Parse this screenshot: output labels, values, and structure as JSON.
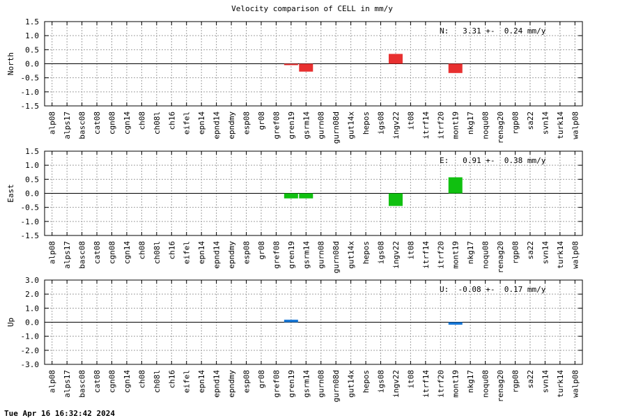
{
  "title": "Velocity comparison of CELL in mm/y",
  "footer": "Tue Apr 16 16:32:42 2024",
  "chart_data": [
    {
      "type": "bar",
      "ylabel": "North",
      "annotation": "N:   3.31 +-  0.24 mm/y",
      "color": "#e83030",
      "ylim": [
        -1.5,
        1.5
      ],
      "yticks": [
        "1.5",
        "1.0",
        "0.5",
        "0.0",
        "-0.5",
        "-1.0",
        "-1.5"
      ],
      "yticks_values": [
        1.5,
        1.0,
        0.5,
        0.0,
        -0.5,
        -1.0,
        -1.5
      ],
      "categories": [
        "alp08",
        "alps17",
        "basc08",
        "cat08",
        "cgn08",
        "cgn14",
        "ch08",
        "ch08l",
        "ch16",
        "eifel",
        "epn14",
        "epnd14",
        "epndmy",
        "esp08",
        "gr08",
        "gref08",
        "gren19",
        "gsrm14",
        "gurn08",
        "gurn08d",
        "gut14x",
        "hepos",
        "igs08",
        "ingv22",
        "it08",
        "itrf14",
        "itrf20",
        "mont19",
        "nkg17",
        "noqu08",
        "renag20",
        "rgp08",
        "sa22",
        "svn14",
        "turk14",
        "walp08"
      ],
      "values": [
        null,
        null,
        null,
        null,
        null,
        null,
        null,
        null,
        null,
        null,
        null,
        null,
        null,
        null,
        null,
        null,
        -0.05,
        -0.28,
        null,
        null,
        null,
        null,
        null,
        0.35,
        null,
        null,
        null,
        -0.33,
        null,
        null,
        null,
        null,
        null,
        null,
        null,
        null
      ]
    },
    {
      "type": "bar",
      "ylabel": "East",
      "annotation": "E:   0.91 +-  0.38 mm/y",
      "color": "#10c010",
      "ylim": [
        -1.5,
        1.5
      ],
      "yticks": [
        "1.5",
        "1.0",
        "0.5",
        "0.0",
        "-0.5",
        "-1.0",
        "-1.5"
      ],
      "yticks_values": [
        1.5,
        1.0,
        0.5,
        0.0,
        -0.5,
        -1.0,
        -1.5
      ],
      "categories": [
        "alp08",
        "alps17",
        "basc08",
        "cat08",
        "cgn08",
        "cgn14",
        "ch08",
        "ch08l",
        "ch16",
        "eifel",
        "epn14",
        "epnd14",
        "epndmy",
        "esp08",
        "gr08",
        "gref08",
        "gren19",
        "gsrm14",
        "gurn08",
        "gurn08d",
        "gut14x",
        "hepos",
        "igs08",
        "ingv22",
        "it08",
        "itrf14",
        "itrf20",
        "mont19",
        "nkg17",
        "noqu08",
        "renag20",
        "rgp08",
        "sa22",
        "svn14",
        "turk14",
        "walp08"
      ],
      "values": [
        null,
        null,
        null,
        null,
        null,
        null,
        null,
        null,
        null,
        null,
        null,
        null,
        null,
        null,
        null,
        null,
        -0.18,
        -0.18,
        null,
        null,
        null,
        null,
        null,
        -0.45,
        null,
        null,
        null,
        0.57,
        null,
        null,
        null,
        null,
        null,
        null,
        null,
        null
      ]
    },
    {
      "type": "bar",
      "ylabel": "Up",
      "annotation": "U:  -0.08 +-  0.17 mm/y",
      "color": "#1878d8",
      "ylim": [
        -3.0,
        3.0
      ],
      "yticks": [
        "3.0",
        "2.0",
        "1.0",
        "0.0",
        "-1.0",
        "-2.0",
        "-3.0"
      ],
      "yticks_values": [
        3.0,
        2.0,
        1.0,
        0.0,
        -1.0,
        -2.0,
        -3.0
      ],
      "categories": [
        "alp08",
        "alps17",
        "basc08",
        "cat08",
        "cgn08",
        "cgn14",
        "ch08",
        "ch08l",
        "ch16",
        "eifel",
        "epn14",
        "epnd14",
        "epndmy",
        "esp08",
        "gr08",
        "gref08",
        "gren19",
        "gsrm14",
        "gurn08",
        "gurn08d",
        "gut14x",
        "hepos",
        "igs08",
        "ingv22",
        "it08",
        "itrf14",
        "itrf20",
        "mont19",
        "nkg17",
        "noqu08",
        "renag20",
        "rgp08",
        "sa22",
        "svn14",
        "turk14",
        "walp08"
      ],
      "values": [
        null,
        null,
        null,
        null,
        null,
        null,
        null,
        null,
        null,
        null,
        null,
        null,
        null,
        null,
        null,
        null,
        0.18,
        null,
        null,
        null,
        null,
        null,
        null,
        null,
        null,
        null,
        null,
        -0.18,
        null,
        null,
        null,
        null,
        null,
        null,
        null,
        null
      ]
    }
  ]
}
